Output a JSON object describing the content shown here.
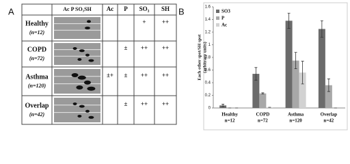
{
  "panel_a": {
    "label": "A",
    "blot_header": "Ac P SO₃SH",
    "columns": [
      "Ac",
      "P",
      "SO₃",
      "SH"
    ],
    "rows": [
      {
        "name": "Healthy",
        "n": "(n=12)",
        "cells": [
          null,
          null,
          "+",
          "++"
        ]
      },
      {
        "name": "COPD",
        "n": "(n=72)",
        "cells": [
          null,
          "±",
          "++",
          "++"
        ]
      },
      {
        "name": "Asthma",
        "n": "(n=120)",
        "cells": [
          "±+",
          "±",
          "++",
          "++"
        ]
      },
      {
        "name": "Overlap",
        "n": "(n=42)",
        "cells": [
          null,
          "±",
          "++",
          "++"
        ]
      }
    ]
  },
  "chart_data": {
    "type": "bar",
    "panel_label": "B",
    "y_label": [
      "Each other spot/SH spot",
      "(arbitrary units)"
    ],
    "categories": [
      "Healthy",
      "COPD",
      "Asthma",
      "Overlap"
    ],
    "category_counts": [
      "n=12",
      "n=72",
      "n=120",
      "n=42"
    ],
    "series": [
      {
        "name": "SO3",
        "color": "#6b6b6b",
        "values": [
          0.04,
          0.54,
          1.38,
          1.25
        ],
        "errors": [
          0.02,
          0.1,
          0.12,
          0.13
        ]
      },
      {
        "name": "P",
        "color": "#a8a8a8",
        "values": [
          0,
          0.23,
          0.75,
          0.36
        ],
        "errors": [
          0,
          0.01,
          0.13,
          0.1
        ]
      },
      {
        "name": "Ac",
        "color": "#d2d2d2",
        "values": [
          0,
          0.01,
          0.56,
          0
        ],
        "errors": [
          0,
          0,
          0.18,
          0
        ]
      }
    ],
    "ylim": [
      0,
      1.6
    ],
    "yticks": [
      0,
      0.2,
      0.4,
      0.6,
      0.8,
      1,
      1.2,
      1.4,
      1.6
    ],
    "legend": "top-left"
  }
}
